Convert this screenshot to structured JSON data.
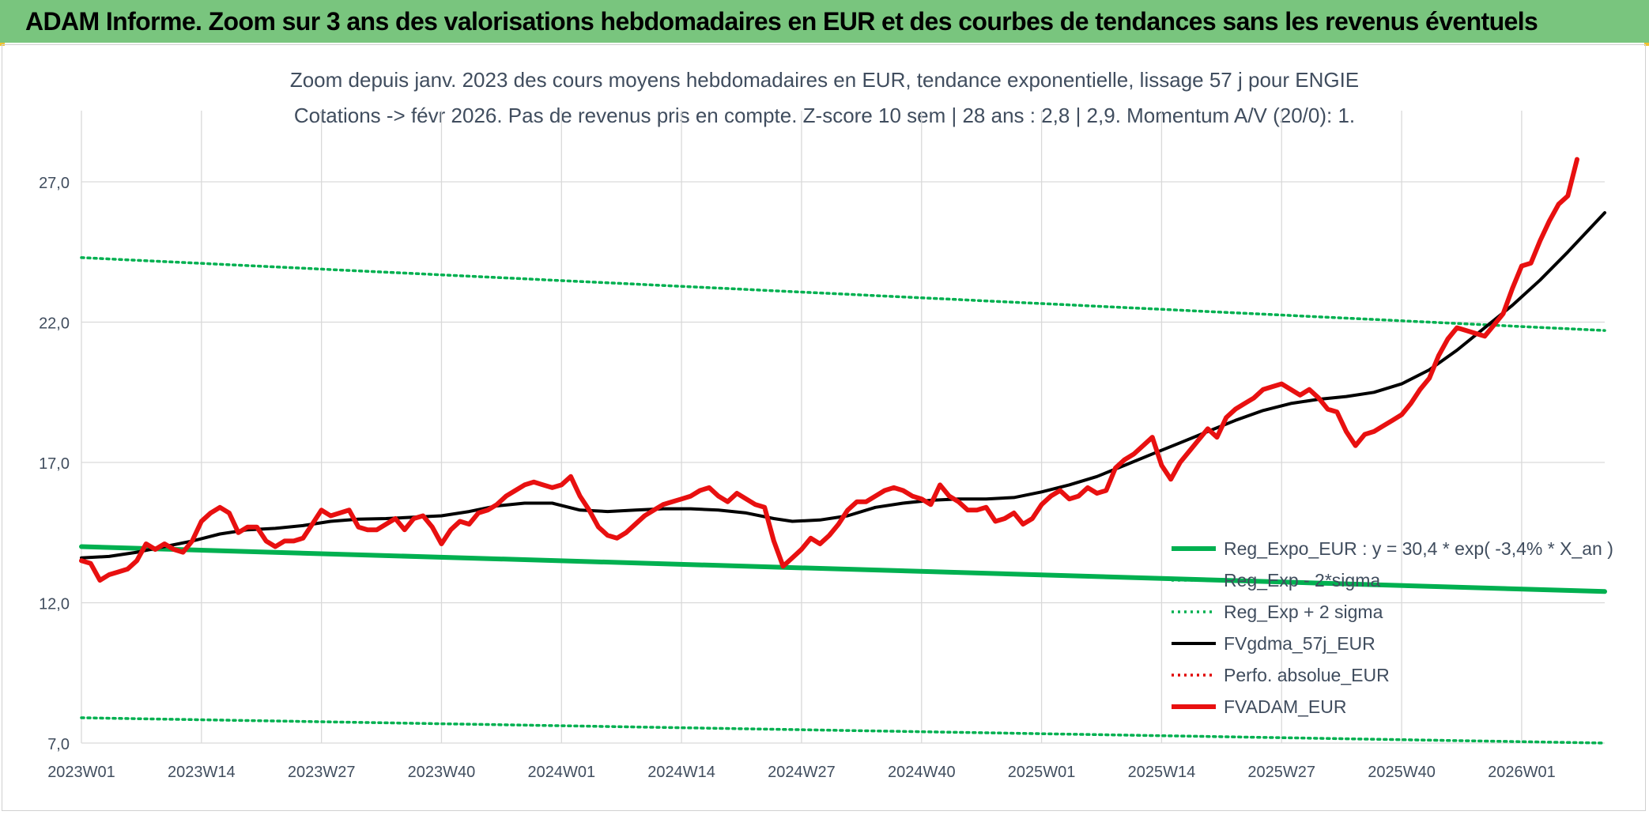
{
  "header": {
    "title": "ADAM Informe. Zoom sur 3 ans des valorisations hebdomadaires en EUR et des courbes de tendances sans les revenus éventuels"
  },
  "colors": {
    "header_bg": "#79c57e",
    "reg_expo": "#00b050",
    "fvgdma": "#000000",
    "perfo": "#e00000",
    "fvadam": "#e81010",
    "title_text": "#404d5e"
  },
  "chart_data": {
    "type": "line",
    "title": "Zoom depuis janv. 2023 des cours moyens hebdomadaires en EUR, tendance exponentielle, lissage 57 j pour ENGIE",
    "subtitle": "Cotations -> févr 2026. Pas de revenus pris en compte. Z-score 10 sem | 28 ans : 2,8 | 2,9. Momentum A/V (20/0): 1.",
    "xlabel": "",
    "ylabel": "",
    "ylim": [
      7.0,
      29.0
    ],
    "y_ticks": [
      "7,0",
      "12,0",
      "17,0",
      "22,0",
      "27,0"
    ],
    "x_ticks": [
      "2023W01",
      "2023W14",
      "2023W27",
      "2023W40",
      "2024W01",
      "2024W14",
      "2024W27",
      "2024W40",
      "2025W01",
      "2025W14",
      "2025W27",
      "2025W40",
      "2026W01"
    ],
    "x_range_weeks": [
      1,
      166
    ],
    "grid": true,
    "legend_position": "bottom-right",
    "series": [
      {
        "name": "Reg_Expo_EUR : y = 30,4 * exp( -3,4% *  X_an )",
        "color": "#00b050",
        "style": "solid-thick",
        "points": [
          [
            1,
            14.0
          ],
          [
            166,
            12.4
          ]
        ]
      },
      {
        "name": "Reg_Exp - 2*sigma",
        "color": "#00b050",
        "style": "dotted",
        "points": [
          [
            1,
            7.9
          ],
          [
            166,
            7.0
          ]
        ]
      },
      {
        "name": "Reg_Exp + 2 sigma",
        "color": "#00b050",
        "style": "dotted",
        "points": [
          [
            1,
            24.3
          ],
          [
            166,
            21.7
          ]
        ]
      },
      {
        "name": "FVgdma_57j_EUR",
        "color": "#000000",
        "style": "solid",
        "points": [
          [
            1,
            13.6
          ],
          [
            4,
            13.65
          ],
          [
            7,
            13.8
          ],
          [
            10,
            14.0
          ],
          [
            13,
            14.2
          ],
          [
            16,
            14.45
          ],
          [
            19,
            14.6
          ],
          [
            22,
            14.65
          ],
          [
            25,
            14.75
          ],
          [
            28,
            14.9
          ],
          [
            31,
            14.98
          ],
          [
            34,
            15.0
          ],
          [
            37,
            15.05
          ],
          [
            40,
            15.1
          ],
          [
            43,
            15.25
          ],
          [
            46,
            15.45
          ],
          [
            49,
            15.55
          ],
          [
            52,
            15.55
          ],
          [
            55,
            15.3
          ],
          [
            58,
            15.25
          ],
          [
            61,
            15.3
          ],
          [
            64,
            15.35
          ],
          [
            67,
            15.35
          ],
          [
            70,
            15.3
          ],
          [
            73,
            15.2
          ],
          [
            76,
            15.0
          ],
          [
            78,
            14.9
          ],
          [
            81,
            14.95
          ],
          [
            84,
            15.1
          ],
          [
            87,
            15.4
          ],
          [
            90,
            15.55
          ],
          [
            93,
            15.65
          ],
          [
            96,
            15.7
          ],
          [
            99,
            15.7
          ],
          [
            102,
            15.75
          ],
          [
            105,
            15.95
          ],
          [
            108,
            16.2
          ],
          [
            111,
            16.5
          ],
          [
            114,
            16.9
          ],
          [
            117,
            17.3
          ],
          [
            120,
            17.7
          ],
          [
            123,
            18.1
          ],
          [
            126,
            18.5
          ],
          [
            129,
            18.85
          ],
          [
            132,
            19.1
          ],
          [
            135,
            19.25
          ],
          [
            138,
            19.35
          ],
          [
            141,
            19.5
          ],
          [
            144,
            19.8
          ],
          [
            147,
            20.3
          ],
          [
            150,
            21.0
          ],
          [
            153,
            21.8
          ],
          [
            156,
            22.6
          ],
          [
            159,
            23.5
          ],
          [
            162,
            24.5
          ],
          [
            166,
            25.9
          ]
        ]
      },
      {
        "name": "Perfo. absolue_EUR",
        "color": "#e00000",
        "style": "dotted",
        "points": []
      },
      {
        "name": "FVADAM_EUR",
        "color": "#e81010",
        "style": "solid-thick",
        "points": [
          [
            1,
            13.5
          ],
          [
            2,
            13.4
          ],
          [
            3,
            12.8
          ],
          [
            4,
            13.0
          ],
          [
            5,
            13.1
          ],
          [
            6,
            13.2
          ],
          [
            7,
            13.5
          ],
          [
            8,
            14.1
          ],
          [
            9,
            13.9
          ],
          [
            10,
            14.1
          ],
          [
            11,
            13.9
          ],
          [
            12,
            13.8
          ],
          [
            13,
            14.2
          ],
          [
            14,
            14.9
          ],
          [
            15,
            15.2
          ],
          [
            16,
            15.4
          ],
          [
            17,
            15.2
          ],
          [
            18,
            14.5
          ],
          [
            19,
            14.7
          ],
          [
            20,
            14.7
          ],
          [
            21,
            14.2
          ],
          [
            22,
            14.0
          ],
          [
            23,
            14.2
          ],
          [
            24,
            14.2
          ],
          [
            25,
            14.3
          ],
          [
            26,
            14.8
          ],
          [
            27,
            15.3
          ],
          [
            28,
            15.1
          ],
          [
            29,
            15.2
          ],
          [
            30,
            15.3
          ],
          [
            31,
            14.7
          ],
          [
            32,
            14.6
          ],
          [
            33,
            14.6
          ],
          [
            34,
            14.8
          ],
          [
            35,
            15.0
          ],
          [
            36,
            14.6
          ],
          [
            37,
            15.0
          ],
          [
            38,
            15.1
          ],
          [
            39,
            14.7
          ],
          [
            40,
            14.1
          ],
          [
            41,
            14.6
          ],
          [
            42,
            14.9
          ],
          [
            43,
            14.8
          ],
          [
            44,
            15.2
          ],
          [
            45,
            15.3
          ],
          [
            46,
            15.5
          ],
          [
            47,
            15.8
          ],
          [
            48,
            16.0
          ],
          [
            49,
            16.2
          ],
          [
            50,
            16.3
          ],
          [
            51,
            16.2
          ],
          [
            52,
            16.1
          ],
          [
            53,
            16.2
          ],
          [
            54,
            16.5
          ],
          [
            55,
            15.8
          ],
          [
            56,
            15.3
          ],
          [
            57,
            14.7
          ],
          [
            58,
            14.4
          ],
          [
            59,
            14.3
          ],
          [
            60,
            14.5
          ],
          [
            61,
            14.8
          ],
          [
            62,
            15.1
          ],
          [
            63,
            15.3
          ],
          [
            64,
            15.5
          ],
          [
            65,
            15.6
          ],
          [
            66,
            15.7
          ],
          [
            67,
            15.8
          ],
          [
            68,
            16.0
          ],
          [
            69,
            16.1
          ],
          [
            70,
            15.8
          ],
          [
            71,
            15.6
          ],
          [
            72,
            15.9
          ],
          [
            73,
            15.7
          ],
          [
            74,
            15.5
          ],
          [
            75,
            15.4
          ],
          [
            76,
            14.2
          ],
          [
            77,
            13.3
          ],
          [
            78,
            13.6
          ],
          [
            79,
            13.9
          ],
          [
            80,
            14.3
          ],
          [
            81,
            14.1
          ],
          [
            82,
            14.4
          ],
          [
            83,
            14.8
          ],
          [
            84,
            15.3
          ],
          [
            85,
            15.6
          ],
          [
            86,
            15.6
          ],
          [
            87,
            15.8
          ],
          [
            88,
            16.0
          ],
          [
            89,
            16.1
          ],
          [
            90,
            16.0
          ],
          [
            91,
            15.8
          ],
          [
            92,
            15.7
          ],
          [
            93,
            15.5
          ],
          [
            94,
            16.2
          ],
          [
            95,
            15.8
          ],
          [
            96,
            15.6
          ],
          [
            97,
            15.3
          ],
          [
            98,
            15.3
          ],
          [
            99,
            15.4
          ],
          [
            100,
            14.9
          ],
          [
            101,
            15.0
          ],
          [
            102,
            15.2
          ],
          [
            103,
            14.8
          ],
          [
            104,
            15.0
          ],
          [
            105,
            15.5
          ],
          [
            106,
            15.8
          ],
          [
            107,
            16.0
          ],
          [
            108,
            15.7
          ],
          [
            109,
            15.8
          ],
          [
            110,
            16.1
          ],
          [
            111,
            15.9
          ],
          [
            112,
            16.0
          ],
          [
            113,
            16.8
          ],
          [
            114,
            17.1
          ],
          [
            115,
            17.3
          ],
          [
            116,
            17.6
          ],
          [
            117,
            17.9
          ],
          [
            118,
            16.9
          ],
          [
            119,
            16.4
          ],
          [
            120,
            17.0
          ],
          [
            121,
            17.4
          ],
          [
            122,
            17.8
          ],
          [
            123,
            18.2
          ],
          [
            124,
            17.9
          ],
          [
            125,
            18.6
          ],
          [
            126,
            18.9
          ],
          [
            127,
            19.1
          ],
          [
            128,
            19.3
          ],
          [
            129,
            19.6
          ],
          [
            130,
            19.7
          ],
          [
            131,
            19.8
          ],
          [
            132,
            19.6
          ],
          [
            133,
            19.4
          ],
          [
            134,
            19.6
          ],
          [
            135,
            19.3
          ],
          [
            136,
            18.9
          ],
          [
            137,
            18.8
          ],
          [
            138,
            18.1
          ],
          [
            139,
            17.6
          ],
          [
            140,
            18.0
          ],
          [
            141,
            18.1
          ],
          [
            142,
            18.3
          ],
          [
            143,
            18.5
          ],
          [
            144,
            18.7
          ],
          [
            145,
            19.1
          ],
          [
            146,
            19.6
          ],
          [
            147,
            20.0
          ],
          [
            148,
            20.8
          ],
          [
            149,
            21.4
          ],
          [
            150,
            21.8
          ],
          [
            151,
            21.7
          ],
          [
            152,
            21.6
          ],
          [
            153,
            21.5
          ],
          [
            154,
            21.9
          ],
          [
            155,
            22.3
          ],
          [
            156,
            23.2
          ],
          [
            157,
            24.0
          ],
          [
            158,
            24.1
          ],
          [
            159,
            24.9
          ],
          [
            160,
            25.6
          ],
          [
            161,
            26.2
          ],
          [
            162,
            26.5
          ],
          [
            163,
            27.8
          ]
        ]
      }
    ]
  }
}
